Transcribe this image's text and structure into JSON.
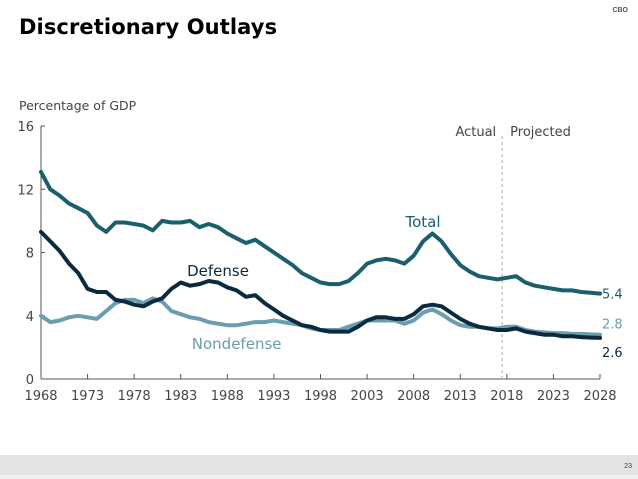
{
  "slide": {
    "title": "Discretionary Outlays",
    "source_tag": "CBO",
    "page_number": "23"
  },
  "chart_data": {
    "type": "line",
    "title": "Discretionary Outlays",
    "ylabel": "Percentage of GDP",
    "xlabel": "",
    "ylim": [
      0,
      16
    ],
    "yticks": [
      0,
      4,
      8,
      12,
      16
    ],
    "xlim": [
      1968,
      2028
    ],
    "xticks": [
      1968,
      1973,
      1978,
      1983,
      1988,
      1993,
      1998,
      2003,
      2008,
      2013,
      2018,
      2023,
      2028
    ],
    "grid": false,
    "divider": {
      "x": 2017.5,
      "left_label": "Actual",
      "right_label": "Projected"
    },
    "x": [
      1968,
      1969,
      1970,
      1971,
      1972,
      1973,
      1974,
      1975,
      1976,
      1977,
      1978,
      1979,
      1980,
      1981,
      1982,
      1983,
      1984,
      1985,
      1986,
      1987,
      1988,
      1989,
      1990,
      1991,
      1992,
      1993,
      1994,
      1995,
      1996,
      1997,
      1998,
      1999,
      2000,
      2001,
      2002,
      2003,
      2004,
      2005,
      2006,
      2007,
      2008,
      2009,
      2010,
      2011,
      2012,
      2013,
      2014,
      2015,
      2016,
      2017,
      2018,
      2019,
      2020,
      2021,
      2022,
      2023,
      2024,
      2025,
      2026,
      2027,
      2028
    ],
    "series": [
      {
        "name": "Total",
        "color": "#1b5e6e",
        "end_label": "5.4",
        "values": [
          13.1,
          12.0,
          11.6,
          11.1,
          10.8,
          10.5,
          9.7,
          9.3,
          9.9,
          9.9,
          9.8,
          9.7,
          9.4,
          10.0,
          9.9,
          9.9,
          10.0,
          9.6,
          9.8,
          9.6,
          9.2,
          8.9,
          8.6,
          8.8,
          8.4,
          8.0,
          7.6,
          7.2,
          6.7,
          6.4,
          6.1,
          6.0,
          6.0,
          6.2,
          6.7,
          7.3,
          7.5,
          7.6,
          7.5,
          7.3,
          7.8,
          8.7,
          9.2,
          8.7,
          7.9,
          7.2,
          6.8,
          6.5,
          6.4,
          6.3,
          6.4,
          6.5,
          6.1,
          5.9,
          5.8,
          5.7,
          5.6,
          5.6,
          5.5,
          5.45,
          5.4
        ]
      },
      {
        "name": "Defense",
        "color": "#0b2a3d",
        "end_label": "2.6",
        "values": [
          9.3,
          8.7,
          8.1,
          7.3,
          6.7,
          5.7,
          5.5,
          5.5,
          5.0,
          4.9,
          4.7,
          4.6,
          4.9,
          5.1,
          5.7,
          6.1,
          5.9,
          6.0,
          6.2,
          6.1,
          5.8,
          5.6,
          5.2,
          5.3,
          4.8,
          4.4,
          4.0,
          3.7,
          3.4,
          3.3,
          3.1,
          3.0,
          3.0,
          3.0,
          3.3,
          3.7,
          3.9,
          3.9,
          3.8,
          3.8,
          4.1,
          4.6,
          4.7,
          4.6,
          4.2,
          3.8,
          3.5,
          3.3,
          3.2,
          3.1,
          3.1,
          3.2,
          3.0,
          2.9,
          2.8,
          2.8,
          2.7,
          2.7,
          2.65,
          2.62,
          2.6
        ]
      },
      {
        "name": "Nondefense",
        "color": "#6a9db0",
        "end_label": "2.8",
        "values": [
          4.0,
          3.6,
          3.7,
          3.9,
          4.0,
          3.9,
          3.8,
          4.3,
          4.8,
          5.0,
          5.0,
          4.8,
          5.1,
          4.9,
          4.3,
          4.1,
          3.9,
          3.8,
          3.6,
          3.5,
          3.4,
          3.4,
          3.5,
          3.6,
          3.6,
          3.7,
          3.6,
          3.5,
          3.4,
          3.2,
          3.1,
          3.1,
          3.1,
          3.3,
          3.5,
          3.7,
          3.7,
          3.7,
          3.7,
          3.5,
          3.7,
          4.2,
          4.4,
          4.1,
          3.7,
          3.4,
          3.3,
          3.3,
          3.2,
          3.2,
          3.3,
          3.3,
          3.1,
          3.0,
          2.95,
          2.9,
          2.9,
          2.85,
          2.85,
          2.82,
          2.8
        ]
      }
    ],
    "series_labels": [
      "Total",
      "Defense",
      "Nondefense"
    ]
  }
}
